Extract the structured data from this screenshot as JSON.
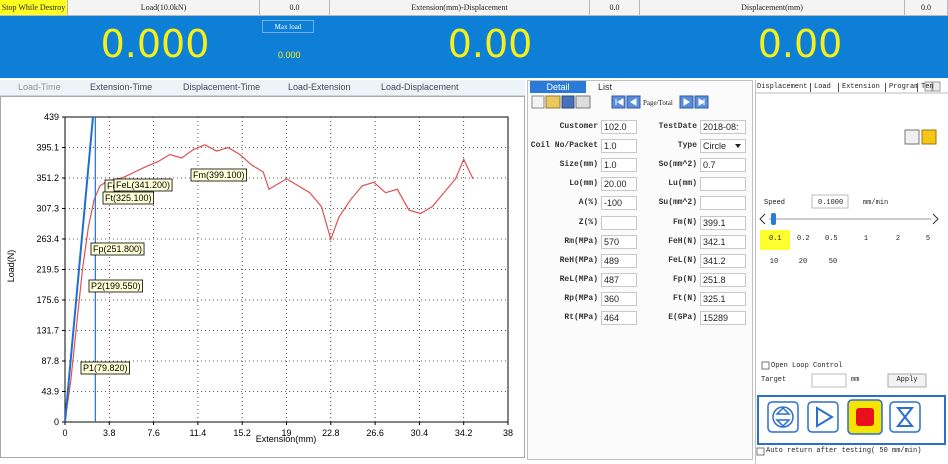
{
  "top_bar": {
    "stop": "Stop While Destroy",
    "cells": [
      {
        "label": "Load(10.0kN)",
        "value": "0.0"
      },
      {
        "label": "Extension(mm)-Displacement",
        "value": "0.0"
      },
      {
        "label": "Displacement(mm)",
        "value": "0.0"
      }
    ]
  },
  "readouts": {
    "load": "0.000",
    "max_load_label": "Max load",
    "max_load": "0.000",
    "extension": "0.00",
    "displacement": "0.00"
  },
  "chart_tabs": [
    "Load-Time",
    "Extension-Time",
    "Displacement-Time",
    "Load-Extension",
    "Load-Displacement"
  ],
  "chart_data": {
    "type": "line",
    "x_label": "Extension(mm)",
    "y_label": "Load(N)",
    "xlim": [
      0,
      38
    ],
    "ylim": [
      0,
      439
    ],
    "xticks": [
      0,
      3.8,
      7.6,
      11.4,
      15.2,
      19,
      22.8,
      26.6,
      30.4,
      34.2,
      38
    ],
    "yticks": [
      0,
      43.9,
      87.8,
      131.7,
      175.6,
      219.5,
      263.4,
      307.3,
      351.2,
      395.1,
      439
    ],
    "grid": true,
    "series": [
      {
        "color": "#e05050",
        "x": [
          0,
          0.5,
          1,
          1.5,
          2,
          2.5,
          3,
          3.5,
          4,
          5,
          6,
          7,
          8,
          9,
          10,
          11,
          12,
          13,
          14,
          15,
          16,
          17,
          17.5,
          18,
          19,
          20,
          21,
          22,
          22.8,
          23.5,
          24.5,
          25.5,
          26.5,
          27.5,
          28.5,
          29.5,
          30.5,
          31.5,
          32.5,
          33.5,
          34.2,
          35
        ],
        "values": [
          0,
          60,
          140,
          220,
          280,
          320,
          340,
          345,
          348,
          352,
          360,
          368,
          375,
          385,
          380,
          392,
          399,
          390,
          395,
          385,
          370,
          360,
          335,
          340,
          350,
          340,
          330,
          310,
          263,
          295,
          320,
          340,
          345,
          330,
          335,
          305,
          300,
          310,
          330,
          350,
          378,
          350
        ]
      },
      {
        "color": "#1f6fd0",
        "x": [
          0,
          2.4
        ],
        "values": [
          0,
          439
        ]
      },
      {
        "color": "#1f6fd0",
        "x": [
          2.6,
          2.6
        ],
        "values": [
          0,
          439
        ]
      }
    ],
    "annotations": [
      "Fm(399.100)",
      "Fc",
      "FeL(341.200)",
      "Ft(325.100)",
      "Fp(251.800)",
      "P2(199.550)",
      "P1(79.820)"
    ]
  },
  "detail": {
    "tabs": [
      "Detail",
      "List"
    ],
    "page_total": "Page/Total",
    "left": [
      {
        "label": "Customer",
        "value": "102.0"
      },
      {
        "label": "Coil No/Packet",
        "value": "1.0"
      },
      {
        "label": "Size(mm)",
        "value": "1.0"
      },
      {
        "label": "Lo(mm)",
        "value": "20.00"
      },
      {
        "label": "A(%)",
        "value": "-100"
      },
      {
        "label": "Z(%)"
      },
      {
        "label": "Rm(MPa)",
        "value": "570"
      },
      {
        "label": "ReH(MPa)",
        "value": "489"
      },
      {
        "label": "ReL(MPa)",
        "value": "487"
      },
      {
        "label": "Rp(MPa)",
        "value": "360"
      },
      {
        "label": "Rt(MPa)",
        "value": "464"
      }
    ],
    "right": [
      {
        "label": "TestDate",
        "value": "2018-08:"
      },
      {
        "label": "Type",
        "value": "Circle"
      },
      {
        "label": "So(mm^2)",
        "value": "0.7"
      },
      {
        "label": "Lu(mm)"
      },
      {
        "label": "Su(mm^2)"
      },
      {
        "label": "Fm(N)",
        "value": "399.1"
      },
      {
        "label": "FeH(N)",
        "value": "342.1"
      },
      {
        "label": "FeL(N)",
        "value": "341.2"
      },
      {
        "label": "Fp(N)",
        "value": "251.8"
      },
      {
        "label": "Ft(N)",
        "value": "325.1"
      },
      {
        "label": "E(GPa)",
        "value": "15289"
      }
    ]
  },
  "control": {
    "tabs": [
      "Displacement",
      "Load",
      "Extension",
      "Program",
      "Ten"
    ],
    "speed_label": "Speed",
    "speed": "0.1000",
    "speed_unit": "mm/min",
    "presets": [
      "0.1",
      "0.2",
      "0.5",
      "1",
      "2",
      "5",
      "10",
      "20",
      "50"
    ],
    "open_loop": "Open Loop Control",
    "target": "Target",
    "target_unit": "mm",
    "apply": "Apply",
    "auto_return": "Auto return after testing( 50   mm/min)"
  }
}
